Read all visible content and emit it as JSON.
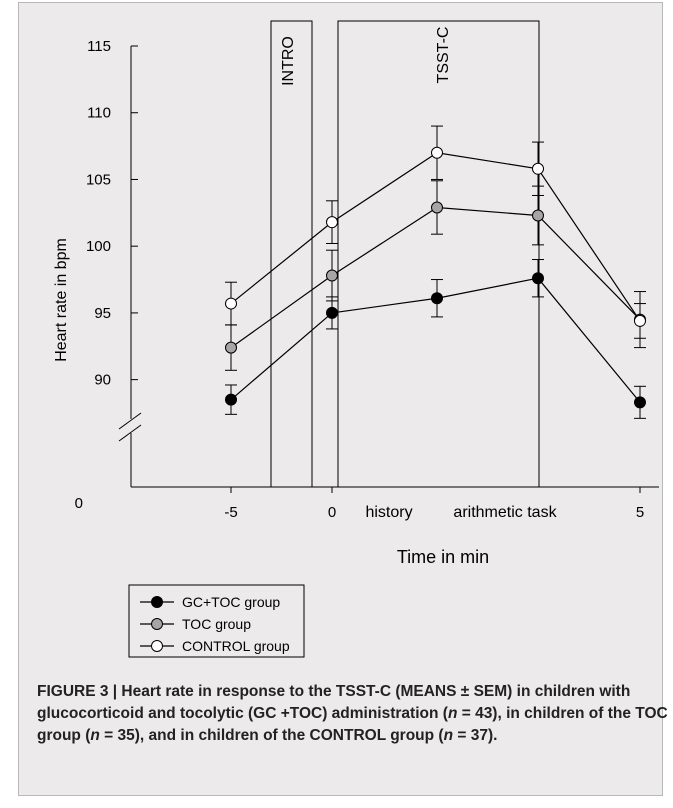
{
  "chart_data": {
    "type": "line",
    "ylabel": "Heart rate in bpm",
    "xlabel": "Time  in min",
    "x_tick_labels": [
      "-5",
      "0",
      "5"
    ],
    "x_task_labels": [
      "history",
      "arithmetic task"
    ],
    "y_ticks": [
      90,
      95,
      100,
      105,
      110,
      115
    ],
    "y_zero_label": "0",
    "ylim": [
      87.5,
      115
    ],
    "axis_break": true,
    "x_points": [
      "-5",
      "0",
      "history",
      "arithmetic task",
      "5"
    ],
    "box_labels": [
      "INTRO",
      "TSST-C"
    ],
    "series": [
      {
        "name": "GC+TOC group",
        "marker": "filled",
        "color": "#000000",
        "values": [
          88.5,
          95.0,
          96.1,
          97.6,
          88.3
        ],
        "sem": [
          1.1,
          1.2,
          1.4,
          1.4,
          1.2
        ]
      },
      {
        "name": "TOC group",
        "marker": "gray",
        "color": "#a6a6a6",
        "values": [
          92.4,
          97.8,
          102.9,
          102.3,
          94.5
        ],
        "sem": [
          1.7,
          1.9,
          2.0,
          2.2,
          2.1
        ]
      },
      {
        "name": "CONTROL group",
        "marker": "open",
        "color": "#ffffff",
        "values": [
          95.7,
          101.8,
          107.0,
          105.8,
          94.4
        ],
        "sem": [
          1.6,
          1.6,
          2.0,
          2.0,
          1.3
        ]
      }
    ],
    "legend": "bottom-left"
  },
  "caption": {
    "p1": "FIGURE 3 | Heart rate in response to the TSST-C (MEANS ± SEM) in children with glucocorticoid and tocolytic (GC +TOC) administration (",
    "n": "n",
    "p2": " = 43), in children of the TOC group (",
    "p3": " = 35), and in children of the CONTROL group (",
    "p4": " = 37)."
  }
}
